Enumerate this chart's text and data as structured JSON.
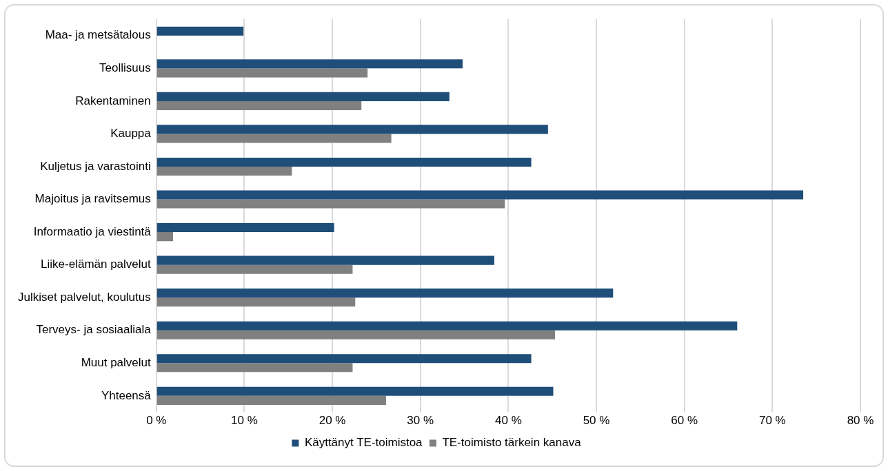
{
  "chart_data": {
    "type": "bar",
    "orientation": "horizontal",
    "categories": [
      "Maa- ja metsätalous",
      "Teollisuus",
      "Rakentaminen",
      "Kauppa",
      "Kuljetus ja varastointi",
      "Majoitus ja ravitsemus",
      "Informaatio ja viestintä",
      "Liike-elämän palvelut",
      "Julkiset palvelut, koulutus",
      "Terveys- ja sosiaaliala",
      "Muut palvelut",
      "Yhteensä"
    ],
    "series": [
      {
        "name": "Käyttänyt TE-toimistoa",
        "color": "#1f4e79",
        "values": [
          9.9,
          34.8,
          33.3,
          44.5,
          42.6,
          73.5,
          20.2,
          38.4,
          51.9,
          66.0,
          42.6,
          45.1
        ]
      },
      {
        "name": "TE-toimisto tärkein kanava",
        "color": "#808080",
        "values": [
          null,
          24.0,
          23.3,
          26.7,
          15.4,
          39.6,
          1.9,
          22.3,
          22.6,
          45.3,
          22.3,
          26.1
        ]
      }
    ],
    "xlim": [
      0,
      80
    ],
    "xticks": [
      {
        "value": 0,
        "label": "0 %"
      },
      {
        "value": 10,
        "label": "10 %"
      },
      {
        "value": 20,
        "label": "20 %"
      },
      {
        "value": 30,
        "label": "30 %"
      },
      {
        "value": 40,
        "label": "40 %"
      },
      {
        "value": 50,
        "label": "50 %"
      },
      {
        "value": 60,
        "label": "60 %"
      },
      {
        "value": 70,
        "label": "70 %"
      },
      {
        "value": 80,
        "label": "80 %"
      }
    ],
    "grid": "x",
    "legend": "bottom"
  }
}
